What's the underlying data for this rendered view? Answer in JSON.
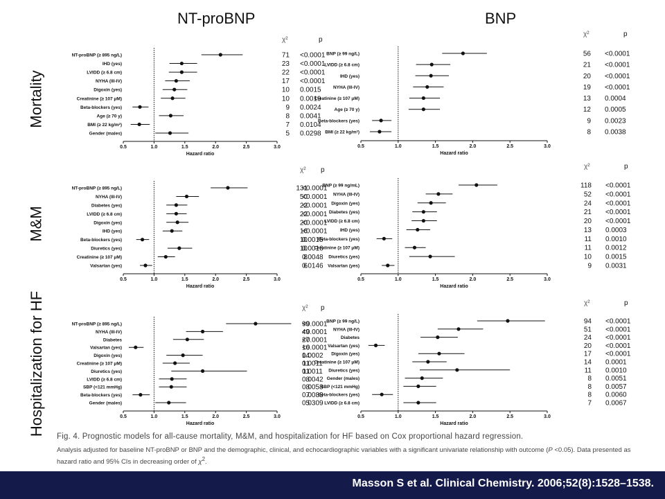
{
  "columns": [
    "NT-proBNP",
    "BNP"
  ],
  "rows": [
    "Mortality",
    "M&M",
    "Hospitalization for HF"
  ],
  "caption": {
    "fig": "Fig. 4. Prognostic models for all-cause mortality, M&M, and hospitalization for HF based on Cox proportional hazard regression.",
    "note_a": "Analysis adjusted for baseline NT-proBNP or BNP and the demographic, clinical, and echocardiographic variables with a significant univariate relationship with outcome (",
    "note_p": "P",
    "note_b": " <0.05). Data presented as hazard ratio and 95% CIs in decreasing order of ",
    "note_chi": "χ",
    "note_sup": "2",
    "note_end": "."
  },
  "footer": {
    "citation": "Masson S et al. Clinical Chemistry. 2006;52(8):1528–1538.",
    "background": "#141a4a"
  },
  "chart_data": [
    {
      "type": "forest",
      "panel": "NT-proBNP / Mortality",
      "xlabel": "Hazard ratio",
      "xlim": [
        0.5,
        3.0
      ],
      "xticks": [
        "0.5",
        "1.0",
        "1.5",
        "2.0",
        "2.5",
        "3.0"
      ],
      "reference_line": 1.0,
      "stat_headers": [
        "χ²",
        "p"
      ],
      "rows": [
        {
          "label": "NT-proBNP (≥ 895 ng/L)",
          "hr": 2.08,
          "lo": 1.77,
          "hi": 2.44,
          "chi2": "71",
          "p": "<0.0001"
        },
        {
          "label": "IHD (yes)",
          "hr": 1.45,
          "lo": 1.25,
          "hi": 1.7,
          "chi2": "23",
          "p": "<0.0001"
        },
        {
          "label": "LVIDD (≥ 6.8 cm)",
          "hr": 1.45,
          "lo": 1.24,
          "hi": 1.7,
          "chi2": "22",
          "p": "<0.0001"
        },
        {
          "label": "NYHA (III-IV)",
          "hr": 1.36,
          "lo": 1.18,
          "hi": 1.58,
          "chi2": "17",
          "p": "<0.0001"
        },
        {
          "label": "Digoxin (yes)",
          "hr": 1.33,
          "lo": 1.14,
          "hi": 1.54,
          "chi2": "10",
          "p": "0.0015"
        },
        {
          "label": "Creatinine (≥ 107 μM)",
          "hr": 1.3,
          "lo": 1.11,
          "hi": 1.51,
          "chi2": "10",
          "p": "0.0019"
        },
        {
          "label": "Beta-blockers (yes)",
          "hr": 0.77,
          "lo": 0.65,
          "hi": 0.91,
          "chi2": "9",
          "p": "0.0024"
        },
        {
          "label": "Age (≥ 70 y)",
          "hr": 1.27,
          "lo": 1.08,
          "hi": 1.48,
          "chi2": "8",
          "p": "0.0041"
        },
        {
          "label": "BMI (≥ 22 kg/m²)",
          "hr": 0.76,
          "lo": 0.62,
          "hi": 0.93,
          "chi2": "7",
          "p": "0.0104"
        },
        {
          "label": "Gender (males)",
          "hr": 1.26,
          "lo": 1.02,
          "hi": 1.56,
          "chi2": "5",
          "p": "0.0298"
        }
      ]
    },
    {
      "type": "forest",
      "panel": "BNP / Mortality",
      "xlabel": "Hazard ratio",
      "xlim": [
        0.5,
        3.0
      ],
      "xticks": [
        "0.5",
        "1.0",
        "1.5",
        "2.0",
        "2.5",
        "3.0"
      ],
      "reference_line": 1.0,
      "stat_headers": [
        "χ²",
        "p"
      ],
      "rows": [
        {
          "label": "BNP (≥ 99 ng/L)",
          "hr": 1.87,
          "lo": 1.59,
          "hi": 2.19,
          "chi2": "56",
          "p": "<0.0001"
        },
        {
          "label": "LVIDD (≥ 6.8 cm)",
          "hr": 1.45,
          "lo": 1.24,
          "hi": 1.7,
          "chi2": "21",
          "p": "<0.0001"
        },
        {
          "label": "IHD (yes)",
          "hr": 1.44,
          "lo": 1.23,
          "hi": 1.68,
          "chi2": "20",
          "p": "<0.0001"
        },
        {
          "label": "NYHA (III-IV)",
          "hr": 1.39,
          "lo": 1.2,
          "hi": 1.61,
          "chi2": "19",
          "p": "<0.0001"
        },
        {
          "label": "Creatinine (≥ 107 μM)",
          "hr": 1.34,
          "lo": 1.15,
          "hi": 1.56,
          "chi2": "13",
          "p": "0.0004"
        },
        {
          "label": "Age (≥ 70 y)",
          "hr": 1.34,
          "lo": 1.14,
          "hi": 1.56,
          "chi2": "12",
          "p": "0.0005"
        },
        {
          "label": "Beta-blockers (yes)",
          "hr": 0.77,
          "lo": 0.65,
          "hi": 0.91,
          "chi2": "9",
          "p": "0.0023"
        },
        {
          "label": "BMI (≥ 22 kg/m²)",
          "hr": 0.75,
          "lo": 0.62,
          "hi": 0.91,
          "chi2": "8",
          "p": "0.0038"
        }
      ]
    },
    {
      "type": "forest",
      "panel": "NT-proBNP / M&M",
      "xlabel": "Hazard ratio",
      "xlim": [
        0.5,
        3.0
      ],
      "xticks": [
        "0.5",
        "1.0",
        "1.5",
        "2.0",
        "2.5",
        "3.0"
      ],
      "reference_line": 1.0,
      "stat_headers": [
        "χ²",
        "p"
      ],
      "rows": [
        {
          "label": "NT-proBNP (≥ 895 ng/L)",
          "hr": 2.2,
          "lo": 1.92,
          "hi": 2.52,
          "chi2": "131",
          "p": "<0.0001"
        },
        {
          "label": "NYHA (III-IV)",
          "hr": 1.53,
          "lo": 1.36,
          "hi": 1.73,
          "chi2": "50",
          "p": "<0.0001"
        },
        {
          "label": "Diabetes (yes)",
          "hr": 1.36,
          "lo": 1.2,
          "hi": 1.54,
          "chi2": "22",
          "p": "<0.0001"
        },
        {
          "label": "LVIDD (≥ 6.8 cm)",
          "hr": 1.36,
          "lo": 1.2,
          "hi": 1.53,
          "chi2": "22",
          "p": "<0.0001"
        },
        {
          "label": "Digoxin (yes)",
          "hr": 1.38,
          "lo": 1.2,
          "hi": 1.56,
          "chi2": "20",
          "p": "<0.0001"
        },
        {
          "label": "IHD (yes)",
          "hr": 1.29,
          "lo": 1.14,
          "hi": 1.46,
          "chi2": "16",
          "p": "<0.0001"
        },
        {
          "label": "Beta-blockers (yes)",
          "hr": 0.81,
          "lo": 0.71,
          "hi": 0.92,
          "chi2": "10",
          "p": "0.0015"
        },
        {
          "label": "Diuretics (yes)",
          "hr": 1.41,
          "lo": 1.22,
          "hi": 1.62,
          "chi2": "10",
          "p": "0.0016"
        },
        {
          "label": "Creatinine (≥ 107 μM)",
          "hr": 1.19,
          "lo": 1.06,
          "hi": 1.34,
          "chi2": "8",
          "p": "0.0048"
        },
        {
          "label": "Valsartan (yes)",
          "hr": 0.86,
          "lo": 0.77,
          "hi": 0.97,
          "chi2": "6",
          "p": "0.0146"
        }
      ]
    },
    {
      "type": "forest",
      "panel": "BNP / M&M",
      "xlabel": "Hazard ratio",
      "xlim": [
        0.5,
        3.0
      ],
      "xticks": [
        "0.5",
        "1.0",
        "1.5",
        "2.0",
        "2.5",
        "3.0"
      ],
      "reference_line": 1.0,
      "stat_headers": [
        "χ²",
        "p"
      ],
      "rows": [
        {
          "label": "BNP (≥ 99 ng/mL)",
          "hr": 2.05,
          "lo": 1.81,
          "hi": 2.33,
          "chi2": "118",
          "p": "<0.0001"
        },
        {
          "label": "NYHA (III-IV)",
          "hr": 1.54,
          "lo": 1.37,
          "hi": 1.73,
          "chi2": "52",
          "p": "<0.0001"
        },
        {
          "label": "Digoxin (yes)",
          "hr": 1.44,
          "lo": 1.26,
          "hi": 1.64,
          "chi2": "24",
          "p": "<0.0001"
        },
        {
          "label": "Diabetes (yes)",
          "hr": 1.34,
          "lo": 1.19,
          "hi": 1.52,
          "chi2": "21",
          "p": "<0.0001"
        },
        {
          "label": "LVIDD (≥ 6.8 cm)",
          "hr": 1.34,
          "lo": 1.18,
          "hi": 1.52,
          "chi2": "20",
          "p": "<0.0001"
        },
        {
          "label": "IHD (yes)",
          "hr": 1.26,
          "lo": 1.11,
          "hi": 1.43,
          "chi2": "13",
          "p": "0.0003"
        },
        {
          "label": "Beta-blockers (yes)",
          "hr": 0.81,
          "lo": 0.71,
          "hi": 0.92,
          "chi2": "11",
          "p": "0.0010"
        },
        {
          "label": "Creatinine (≥ 107 μM)",
          "hr": 1.22,
          "lo": 1.09,
          "hi": 1.37,
          "chi2": "11",
          "p": "0.0012"
        },
        {
          "label": "Diuretics (yes)",
          "hr": 1.43,
          "lo": 1.15,
          "hi": 1.76,
          "chi2": "10",
          "p": "0.0015"
        },
        {
          "label": "Valsartan (yes)",
          "hr": 0.86,
          "lo": 0.78,
          "hi": 0.95,
          "chi2": "9",
          "p": "0.0031"
        }
      ]
    },
    {
      "type": "forest",
      "panel": "NT-proBNP / Hospitalization for HF",
      "xlabel": "Hazard ratio",
      "xlim": [
        0.5,
        3.0
      ],
      "xticks": [
        "0.5",
        "1.0",
        "1.5",
        "2.0",
        "2.5",
        "3.0"
      ],
      "reference_line": 1.0,
      "stat_headers": [
        "χ²",
        "p"
      ],
      "rows": [
        {
          "label": "NT-proBNP (≥ 895 ng/L)",
          "hr": 2.65,
          "lo": 2.17,
          "hi": 3.23,
          "chi2": "99",
          "p": "<0.0001"
        },
        {
          "label": "NYHA (III-IV)",
          "hr": 1.79,
          "lo": 1.52,
          "hi": 2.12,
          "chi2": "49",
          "p": "<0.0001"
        },
        {
          "label": "Diabetes",
          "hr": 1.54,
          "lo": 1.31,
          "hi": 1.81,
          "chi2": "27",
          "p": "<0.0001"
        },
        {
          "label": "Valsartan (yes)",
          "hr": 0.7,
          "lo": 0.59,
          "hi": 0.83,
          "chi2": "16",
          "p": "<0.0001"
        },
        {
          "label": "Digoxin (yes)",
          "hr": 1.47,
          "lo": 1.2,
          "hi": 1.79,
          "chi2": "14",
          "p": "0.0002"
        },
        {
          "label": "Creatinine (≥ 107 μM)",
          "hr": 1.34,
          "lo": 1.14,
          "hi": 1.58,
          "chi2": "11",
          "p": "0.0011"
        },
        {
          "label": "Diuretics (yes)",
          "hr": 1.79,
          "lo": 1.28,
          "hi": 2.51,
          "chi2": "11",
          "p": "0.0011"
        },
        {
          "label": "LVIDD (≥ 6.8 cm)",
          "hr": 1.29,
          "lo": 1.08,
          "hi": 1.53,
          "chi2": "8",
          "p": "0.0042"
        },
        {
          "label": "SBP (<121 mmHg)",
          "hr": 1.28,
          "lo": 1.08,
          "hi": 1.53,
          "chi2": "8",
          "p": "0.0058"
        },
        {
          "label": "Beta-blockers (yes)",
          "hr": 0.78,
          "lo": 0.65,
          "hi": 0.93,
          "chi2": "7",
          "p": "0.0083"
        },
        {
          "label": "Gender (males)",
          "hr": 1.24,
          "lo": 1.02,
          "hi": 1.52,
          "chi2": "5",
          "p": "0.0309"
        }
      ]
    },
    {
      "type": "forest",
      "panel": "BNP / Hospitalization for HF",
      "xlabel": "Hazard ratio",
      "xlim": [
        0.5,
        3.0
      ],
      "xticks": [
        "0.5",
        "1.0",
        "1.5",
        "2.0",
        "2.5",
        "3.0"
      ],
      "reference_line": 1.0,
      "stat_headers": [
        "χ²",
        "p"
      ],
      "rows": [
        {
          "label": "BNP (≥ 99 ng/L)",
          "hr": 2.47,
          "lo": 2.06,
          "hi": 2.97,
          "chi2": "94",
          "p": "<0.0001"
        },
        {
          "label": "NYHA (III-IV)",
          "hr": 1.81,
          "lo": 1.53,
          "hi": 2.14,
          "chi2": "51",
          "p": "<0.0001"
        },
        {
          "label": "Diabetes",
          "hr": 1.53,
          "lo": 1.3,
          "hi": 1.8,
          "chi2": "24",
          "p": "<0.0001"
        },
        {
          "label": "Valsartan (yes)",
          "hr": 0.7,
          "lo": 0.6,
          "hi": 0.82,
          "chi2": "20",
          "p": "<0.0001"
        },
        {
          "label": "Digoxin (yes)",
          "hr": 1.55,
          "lo": 1.27,
          "hi": 1.89,
          "chi2": "17",
          "p": "<0.0001"
        },
        {
          "label": "Creatinine (≥ 107 μM)",
          "hr": 1.4,
          "lo": 1.19,
          "hi": 1.65,
          "chi2": "14",
          "p": "0.0001"
        },
        {
          "label": "Diuretics (yes)",
          "hr": 1.79,
          "lo": 1.29,
          "hi": 2.5,
          "chi2": "11",
          "p": "0.0010"
        },
        {
          "label": "Gender (males)",
          "hr": 1.32,
          "lo": 1.09,
          "hi": 1.6,
          "chi2": "8",
          "p": "0.0051"
        },
        {
          "label": "SBP (<121 mmHg)",
          "hr": 1.27,
          "lo": 1.07,
          "hi": 1.51,
          "chi2": "8",
          "p": "0.0057"
        },
        {
          "label": "Beta-blockers (yes)",
          "hr": 0.78,
          "lo": 0.65,
          "hi": 0.93,
          "chi2": "8",
          "p": "0.0060"
        },
        {
          "label": "LVIDD (≥ 6.8 cm)",
          "hr": 1.27,
          "lo": 1.07,
          "hi": 1.51,
          "chi2": "7",
          "p": "0.0067"
        }
      ]
    }
  ]
}
